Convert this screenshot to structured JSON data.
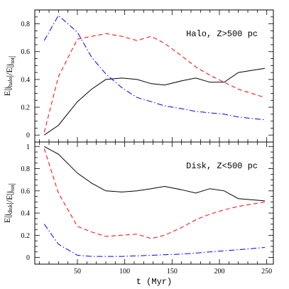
{
  "chart_data": [
    {
      "type": "line",
      "panel": "top",
      "annotation": "Halo, Z>500 pc",
      "ylabel": {
        "prefix": "E|j",
        "sub1": "halo",
        "mid": "|/E|j",
        "sub2": "tot",
        "suffix": "|"
      },
      "xlim": [
        5,
        257
      ],
      "ylim": [
        -0.05,
        0.9
      ],
      "yticks": [
        0,
        0.2,
        0.4,
        0.6,
        0.8
      ],
      "ytick_labels": [
        "0",
        "0.2",
        "0.4",
        "0.6",
        "0.8"
      ],
      "series": [
        {
          "style": "solid",
          "color": "#000000",
          "x": [
            15,
            30,
            50,
            65,
            80,
            97,
            113,
            128,
            142,
            160,
            175,
            190,
            205,
            220,
            248
          ],
          "y": [
            0.0,
            0.07,
            0.24,
            0.33,
            0.4,
            0.41,
            0.4,
            0.37,
            0.36,
            0.39,
            0.41,
            0.38,
            0.38,
            0.45,
            0.48
          ]
        },
        {
          "style": "dashed",
          "color": "#ff0000",
          "x": [
            15,
            30,
            50,
            65,
            80,
            97,
            113,
            128,
            142,
            160,
            175,
            190,
            205,
            220,
            248
          ],
          "y": [
            0.02,
            0.42,
            0.69,
            0.71,
            0.73,
            0.71,
            0.68,
            0.71,
            0.66,
            0.57,
            0.49,
            0.43,
            0.38,
            0.33,
            0.27
          ]
        },
        {
          "style": "dashdot",
          "color": "#0000ff",
          "x": [
            15,
            30,
            50,
            65,
            80,
            97,
            113,
            128,
            142,
            160,
            175,
            190,
            205,
            220,
            248
          ],
          "y": [
            0.68,
            0.86,
            0.74,
            0.56,
            0.44,
            0.34,
            0.27,
            0.24,
            0.21,
            0.19,
            0.17,
            0.16,
            0.15,
            0.13,
            0.11
          ]
        }
      ]
    },
    {
      "type": "line",
      "panel": "bottom",
      "annotation": "Disk, Z<500 pc",
      "ylabel": {
        "prefix": "E|j",
        "sub1": "disk",
        "mid": "|/E|j",
        "sub2": "tot",
        "suffix": "|"
      },
      "xlabel": "t (Myr)",
      "xlim": [
        5,
        257
      ],
      "ylim": [
        -0.06,
        1.04
      ],
      "xticks": [
        50,
        100,
        150,
        200,
        250
      ],
      "xtick_labels": [
        "50",
        "100",
        "150",
        "200",
        "250"
      ],
      "yticks": [
        0,
        0.2,
        0.4,
        0.6,
        0.8,
        1
      ],
      "ytick_labels": [
        "0",
        "0.2",
        "0.4",
        "0.6",
        "0.8",
        "1"
      ],
      "series": [
        {
          "style": "solid",
          "color": "#000000",
          "x": [
            15,
            30,
            50,
            65,
            80,
            97,
            113,
            128,
            142,
            160,
            175,
            190,
            205,
            220,
            248
          ],
          "y": [
            1.0,
            0.93,
            0.76,
            0.67,
            0.6,
            0.59,
            0.6,
            0.62,
            0.64,
            0.61,
            0.58,
            0.62,
            0.6,
            0.53,
            0.51
          ]
        },
        {
          "style": "dashed",
          "color": "#ff0000",
          "x": [
            15,
            30,
            50,
            65,
            80,
            97,
            113,
            128,
            142,
            160,
            175,
            190,
            205,
            220,
            248
          ],
          "y": [
            0.98,
            0.58,
            0.28,
            0.23,
            0.19,
            0.2,
            0.21,
            0.17,
            0.2,
            0.27,
            0.34,
            0.39,
            0.43,
            0.46,
            0.5
          ]
        },
        {
          "style": "dashdot",
          "color": "#0000ff",
          "x": [
            15,
            30,
            50,
            65,
            80,
            97,
            113,
            128,
            142,
            160,
            175,
            190,
            205,
            220,
            248
          ],
          "y": [
            0.3,
            0.12,
            0.02,
            0.01,
            0.01,
            0.01,
            0.015,
            0.02,
            0.025,
            0.03,
            0.04,
            0.05,
            0.06,
            0.07,
            0.09
          ]
        }
      ]
    }
  ]
}
